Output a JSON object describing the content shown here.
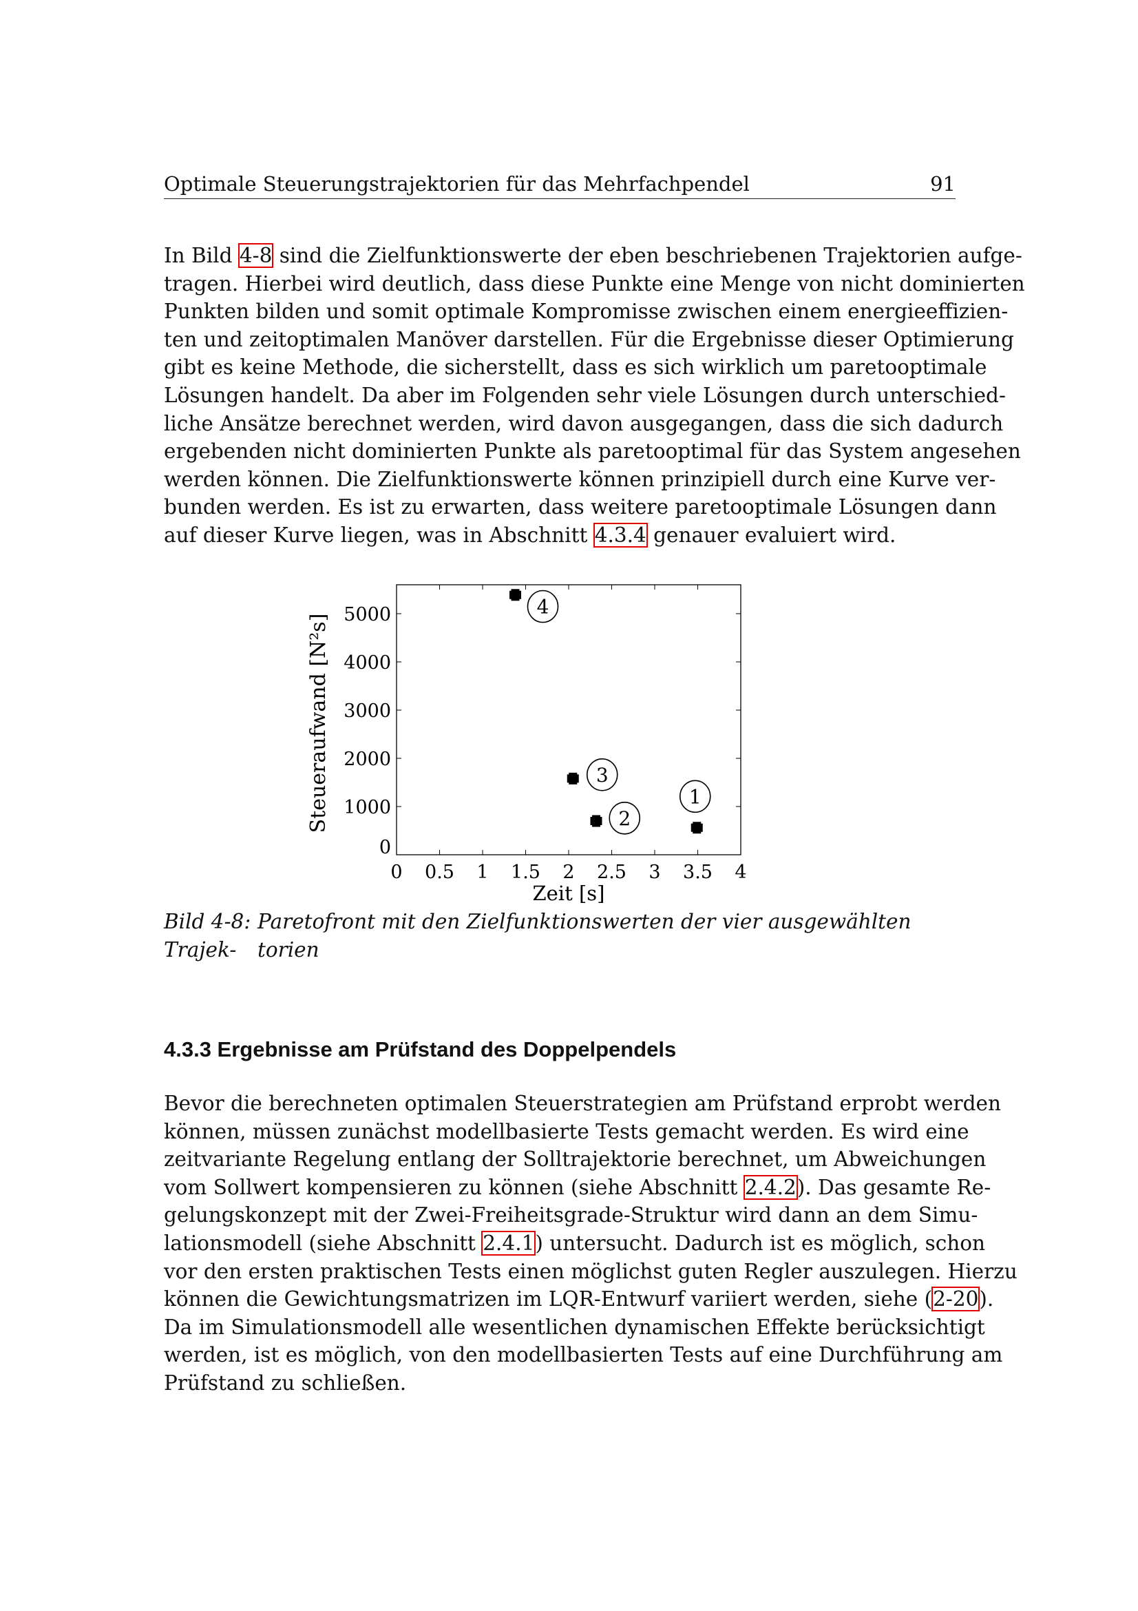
{
  "header": {
    "title": "Optimale Steuerungstrajektorien für das Mehrfachpendel",
    "page_number": "91"
  },
  "paragraph1": [
    [
      {
        "t": "In Bild "
      },
      {
        "t": "4-8",
        "link": true
      },
      {
        "t": " sind die Zielfunktionswerte der eben beschriebenen Trajektorien aufge-"
      }
    ],
    [
      {
        "t": "tragen. Hierbei wird deutlich, dass diese Punkte eine Menge von nicht dominierten"
      }
    ],
    [
      {
        "t": "Punkten bilden und somit optimale Kompromisse zwischen einem energieeffizien-"
      }
    ],
    [
      {
        "t": "ten und zeitoptimalen Manöver darstellen. Für die Ergebnisse dieser Optimierung"
      }
    ],
    [
      {
        "t": "gibt es keine Methode, die sicherstellt, dass es sich wirklich um paretooptimale"
      }
    ],
    [
      {
        "t": "Lösungen handelt. Da aber im Folgenden sehr viele Lösungen durch unterschied-"
      }
    ],
    [
      {
        "t": "liche Ansätze berechnet werden, wird davon ausgegangen, dass die sich dadurch"
      }
    ],
    [
      {
        "t": "ergebenden nicht dominierten Punkte als paretooptimal für das System angesehen"
      }
    ],
    [
      {
        "t": "werden können. Die Zielfunktionswerte können prinzipiell durch eine Kurve ver-"
      }
    ],
    [
      {
        "t": "bunden werden. Es ist zu erwarten, dass weitere paretooptimale Lösungen dann"
      }
    ],
    [
      {
        "t": "auf dieser Kurve liegen, was in Abschnitt "
      },
      {
        "t": "4.3.4",
        "link": true
      },
      {
        "t": " genauer evaluiert wird."
      }
    ]
  ],
  "figure": {
    "caption_label": "Bild 4-8:",
    "caption_line1": "Paretofront mit den Zielfunktionswerten der vier ausgewählten Trajek-",
    "caption_line2": "torien"
  },
  "chart_data": {
    "type": "scatter",
    "xlabel": "Zeit [s]",
    "ylabel": "Steueraufwand [N²s]",
    "xlim": [
      0,
      4
    ],
    "ylim": [
      0,
      5600
    ],
    "xticks": [
      "0",
      "0.5",
      "1",
      "1.5",
      "2",
      "2.5",
      "3",
      "3.5",
      "4"
    ],
    "yticks": [
      "0",
      "1000",
      "2000",
      "3000",
      "4000",
      "5000"
    ],
    "grid": false,
    "marker": "plus-filled",
    "points": [
      {
        "label": "1",
        "x": 3.49,
        "y": 560,
        "label_x": 3.47,
        "label_y": 1210
      },
      {
        "label": "2",
        "x": 2.32,
        "y": 700,
        "label_x": 2.65,
        "label_y": 760
      },
      {
        "label": "3",
        "x": 2.05,
        "y": 1580,
        "label_x": 2.39,
        "label_y": 1660
      },
      {
        "label": "4",
        "x": 1.38,
        "y": 5390,
        "label_x": 1.7,
        "label_y": 5150
      }
    ]
  },
  "section": {
    "heading": "4.3.3 Ergebnisse am Prüfstand des Doppelpendels"
  },
  "paragraph2": [
    [
      {
        "t": "Bevor die berechneten optimalen Steuerstrategien am Prüfstand erprobt werden"
      }
    ],
    [
      {
        "t": "können, müssen zunächst modellbasierte Tests gemacht werden. Es wird eine"
      }
    ],
    [
      {
        "t": "zeitvariante Regelung entlang der Solltrajektorie berechnet, um Abweichungen"
      }
    ],
    [
      {
        "t": "vom Sollwert kompensieren zu können (siehe Abschnitt "
      },
      {
        "t": "2.4.2",
        "link": true
      },
      {
        "t": "). Das gesamte Re-"
      }
    ],
    [
      {
        "t": "gelungskonzept mit der Zwei-Freiheitsgrade-Struktur wird dann an dem Simu-"
      }
    ],
    [
      {
        "t": "lationsmodell (siehe Abschnitt "
      },
      {
        "t": "2.4.1",
        "link": true
      },
      {
        "t": ") untersucht. Dadurch ist es möglich, schon"
      }
    ],
    [
      {
        "t": "vor den ersten praktischen Tests einen möglichst guten Regler auszulegen. Hierzu"
      }
    ],
    [
      {
        "t": "können die Gewichtungsmatrizen im LQR-Entwurf variiert werden, siehe ("
      },
      {
        "t": "2-20",
        "link": true
      },
      {
        "t": ")."
      }
    ],
    [
      {
        "t": "Da im Simulationsmodell alle wesentlichen dynamischen Effekte berücksichtigt"
      }
    ],
    [
      {
        "t": "werden, ist es möglich, von den modellbasierten Tests auf eine Durchführung am"
      }
    ],
    [
      {
        "t": "Prüfstand zu schließen."
      }
    ]
  ],
  "colors": {
    "link_border": "#e00000",
    "text": "#111111"
  }
}
